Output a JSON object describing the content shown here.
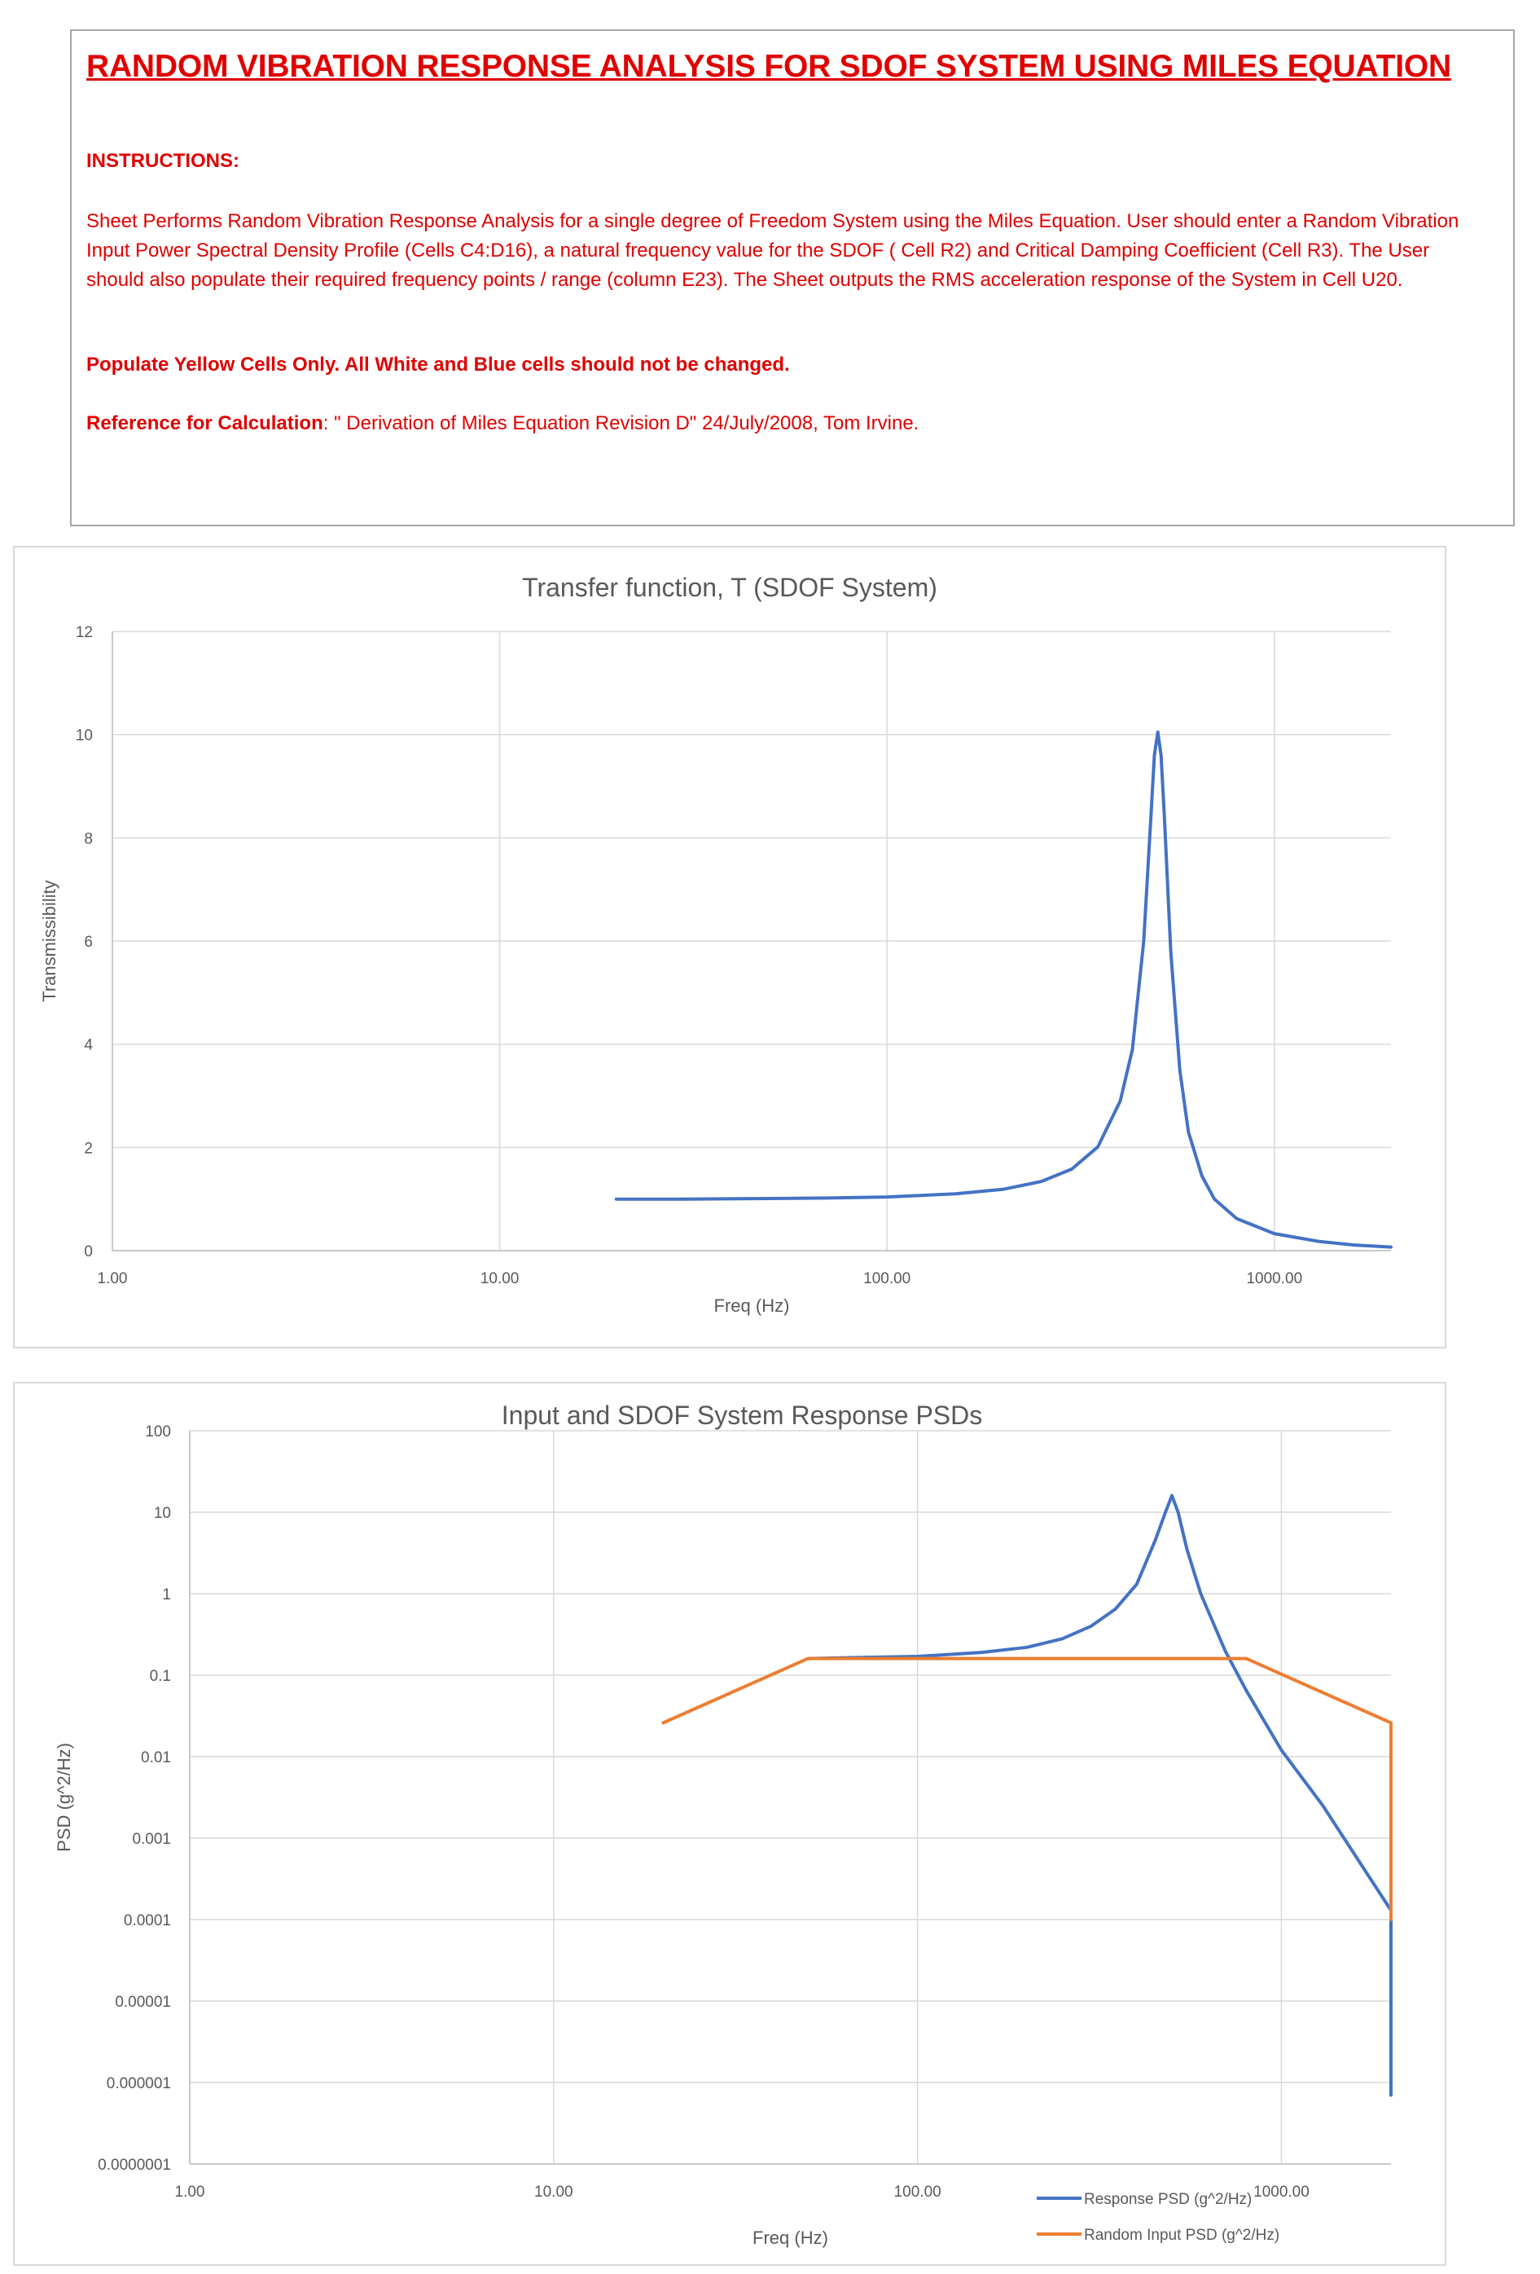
{
  "instructions": {
    "title": "RANDOM VIBRATION RESPONSE ANALYSIS FOR SDOF SYSTEM USING MILES EQUATION",
    "heading": "INSTRUCTIONS:",
    "body": "Sheet Performs Random Vibration Response Analysis for a single degree of Freedom System using the Miles Equation. User should enter a Random Vibration Input Power Spectral Density Profile (Cells C4:D16), a natural frequency value for the SDOF ( Cell R2) and Critical Damping Coefficient (Cell R3). The User should also populate their required frequency points / range (column E23). The Sheet outputs the RMS acceleration response of the System in Cell U20.",
    "note": "Populate Yellow Cells Only. All White and Blue cells should not be changed.",
    "reference_label": "Reference for Calculation",
    "reference_text": ": \" Derivation of Miles Equation Revision D\" 24/July/2008, Tom Irvine."
  },
  "chart_data": [
    {
      "type": "line",
      "title": "Transfer function, T (SDOF System)",
      "xlabel": "Freq (Hz)",
      "ylabel": "Transmissibility",
      "x_scale": "log",
      "xlim": [
        1,
        2000
      ],
      "ylim": [
        0,
        12
      ],
      "x_ticks": [
        "1.00",
        "10.00",
        "100.00",
        "1000.00"
      ],
      "y_ticks": [
        "0",
        "2",
        "4",
        "6",
        "8",
        "10",
        "12"
      ],
      "grid": true,
      "legend": "none",
      "series": [
        {
          "color": "#4472c4",
          "x": [
            20,
            30,
            50,
            70,
            100,
            150,
            200,
            250,
            300,
            350,
            400,
            430,
            460,
            480,
            490,
            500,
            510,
            520,
            540,
            570,
            600,
            650,
            700,
            800,
            1000,
            1300,
            1600,
            2000
          ],
          "y": [
            1.0,
            1.0,
            1.01,
            1.02,
            1.04,
            1.1,
            1.19,
            1.34,
            1.58,
            2.01,
            2.9,
            3.9,
            6.0,
            8.4,
            9.6,
            10.05,
            9.6,
            8.4,
            5.8,
            3.5,
            2.3,
            1.45,
            1.0,
            0.62,
            0.33,
            0.18,
            0.11,
            0.07
          ]
        }
      ]
    },
    {
      "type": "line",
      "title": "Input and SDOF System Response PSDs",
      "xlabel": "Freq (Hz)",
      "ylabel": "PSD (g^2/Hz)",
      "x_scale": "log",
      "y_scale": "log",
      "xlim": [
        1,
        2000
      ],
      "ylim": [
        1e-07,
        100
      ],
      "x_ticks": [
        "1.00",
        "10.00",
        "100.00",
        "1000.00"
      ],
      "y_ticks": [
        "0.0000001",
        "0.000001",
        "0.00001",
        "0.0001",
        "0.001",
        "0.01",
        "0.1",
        "1",
        "10",
        "100"
      ],
      "grid": true,
      "legend": "bottom-right",
      "series": [
        {
          "name": "Response PSD (g^2/Hz)",
          "color": "#4472c4",
          "x": [
            50,
            70,
            100,
            150,
            200,
            250,
            300,
            350,
            400,
            450,
            480,
            500,
            520,
            550,
            600,
            700,
            800,
            1000,
            1300,
            1600,
            2000,
            2000
          ],
          "y": [
            0.16,
            0.165,
            0.17,
            0.19,
            0.22,
            0.28,
            0.4,
            0.65,
            1.3,
            4.5,
            10,
            16,
            10,
            3.5,
            1.0,
            0.2,
            0.065,
            0.012,
            0.0025,
            0.0006,
            0.00013,
            7e-07
          ]
        },
        {
          "name": "Random Input PSD (g^2/Hz)",
          "color": "#ed7d31",
          "x": [
            20,
            50,
            800,
            2000,
            2000
          ],
          "y": [
            0.026,
            0.16,
            0.16,
            0.026,
            0.0001
          ]
        }
      ]
    }
  ]
}
